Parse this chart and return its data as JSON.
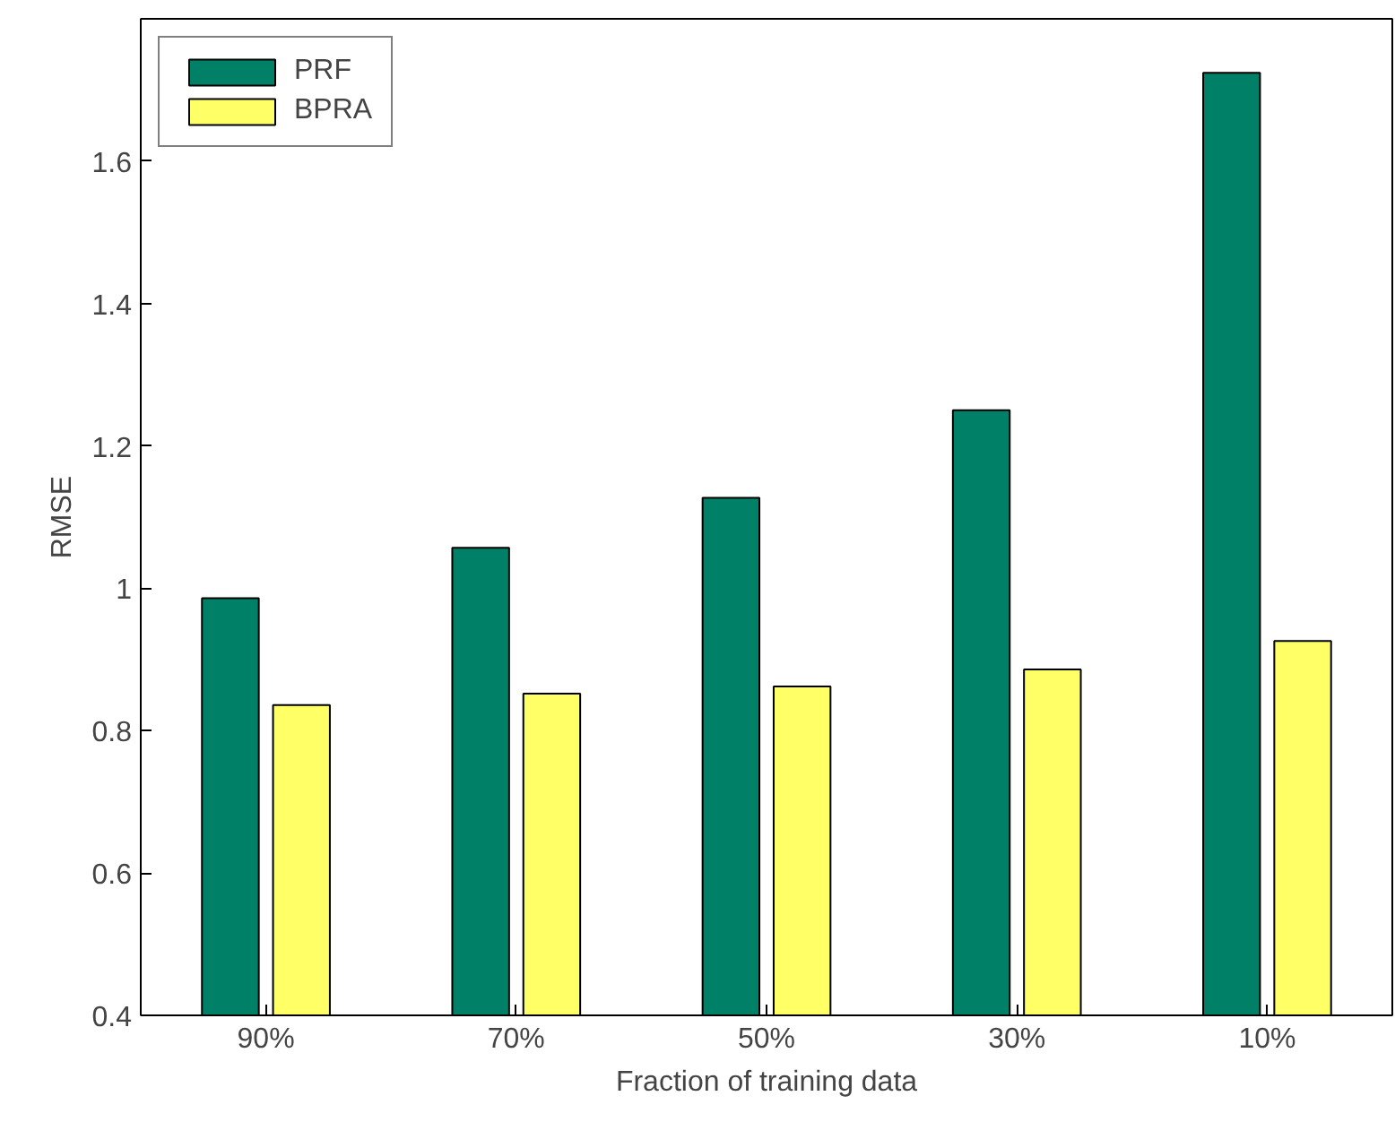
{
  "chart_data": {
    "type": "bar",
    "xlabel": "Fraction of training data",
    "ylabel": "RMSE",
    "categories": [
      "90%",
      "70%",
      "50%",
      "30%",
      "10%"
    ],
    "series": [
      {
        "name": "PRF",
        "color": "#008066",
        "values": [
          0.986,
          1.057,
          1.127,
          1.25,
          1.724
        ]
      },
      {
        "name": "BPRA",
        "color": "#ffff66",
        "values": [
          0.836,
          0.852,
          0.862,
          0.886,
          0.926
        ]
      }
    ],
    "ylim": [
      0.4,
      1.8
    ],
    "yticks": [
      0.4,
      0.6,
      0.8,
      1,
      1.2,
      1.4,
      1.6
    ],
    "grid": false,
    "legend": "top left"
  }
}
